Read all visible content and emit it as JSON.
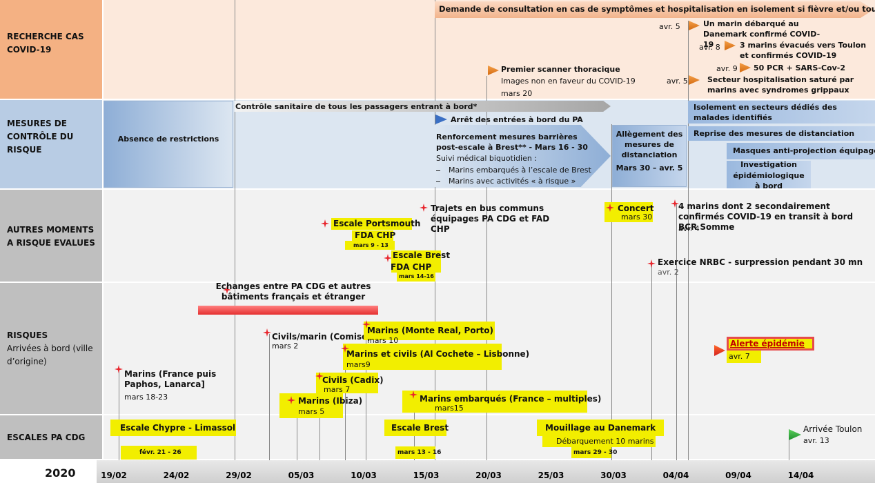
{
  "rows": [
    {
      "title": "RECHERCHE CAS COVID-19"
    },
    {
      "title": "MESURES DE CONTRÔLE DU RISQUE"
    },
    {
      "title": "AUTRES MOMENTS A RISQUE EVALUES"
    },
    {
      "title": "RISQUES",
      "subtitle": "Arrivées à bord (ville d’origine)"
    },
    {
      "title": "ESCALES PA CDG"
    }
  ],
  "case_search": {
    "banner": "Demande de consultation en cas de symptômes et hospitalisation en isolement si fièvre et/ou toux",
    "scanner": {
      "title": "Premier scanner thoracique",
      "note": "Images non en faveur du COVID-19",
      "date": "mars 20"
    },
    "events": [
      {
        "date": "avr. 5",
        "text": "Un marin débarqué au Danemark confirmé COVID-19"
      },
      {
        "date": "avr. 8",
        "text": "3 marins  évacués vers Toulon et confirmés COVID-19"
      },
      {
        "date": "avr. 9",
        "text": "50 PCR + SARS-Cov-2"
      },
      {
        "date": "avr. 5",
        "text": "Secteur hospitalisation  saturé par marins avec syndromes grippaux"
      }
    ]
  },
  "control_measures": {
    "no_restrictions": "Absence de restrictions",
    "health_check": "Contrôle sanitaire de tous les passagers entrant à bord*",
    "entry_stop": "Arrêt des entrées à bord du PA",
    "barriers": "Renforcement mesures barrières post-escale à Brest** - Mars 16 - 30",
    "follow_up": "Suivi médical biquotidien :",
    "follow_up_items": [
      "Marins embarqués à l’escale de Brest",
      "Marins avec activités « à risque »"
    ],
    "relaxation": "Allègement des mesures de distanciation",
    "relaxation_date": "Mars 30 – avr. 5",
    "isolation": "Isolement en secteurs dédiés des malades identifiés",
    "distancing": "Reprise des mesures de distanciation",
    "masks": "Masques anti-projection équipage",
    "investigation": "Investigation épidémiologique à bord"
  },
  "other_moments": {
    "portsmouth": {
      "title": "Escale Portsmouth",
      "sub": "FDA CHP",
      "date": "mars 9 - 13"
    },
    "brest": {
      "title": "Escale Brest",
      "sub": "FDA CHP",
      "date": "mars 14-16"
    },
    "bus": "Trajets en bus communs équipages PA CDG et FAD CHP",
    "concert": {
      "title": "Concert",
      "date": "mars 30"
    },
    "somme": {
      "text": "4 marins dont 2 secondairement confirmés COVID-19 en transit à bord BCR Somme",
      "date": "avr. 4"
    },
    "nrbc": {
      "text": "Exercice NRBC - surpression pendant 30 mn",
      "date": "avr. 2"
    }
  },
  "arrivals": {
    "exchanges": "Echanges entre PA CDG et autres bâtiments français et étranger",
    "items": [
      {
        "text": "Civils/marin (Comiso)",
        "date": "mars 2"
      },
      {
        "text": "Marins (Monte Real, Porto)",
        "date": "mars 10"
      },
      {
        "text": "Marins et civils (Al Cochete – Lisbonne)",
        "date": "mars9"
      },
      {
        "text": "Civils (Cadix)",
        "date": "mars 7"
      },
      {
        "text": "Marins (Ibiza)",
        "date": "mars 5"
      },
      {
        "text": "Marins embarqués (France – multiples)",
        "date": "mars15"
      },
      {
        "text": "Marins (France puis Paphos, Lanarca]",
        "date": "mars 18-23"
      }
    ],
    "alert": {
      "text": "Alerte épidémie",
      "date": "avr. 7"
    }
  },
  "stopovers": [
    {
      "title": "Escale Chypre - Limassol",
      "date": "févr. 21 - 26"
    },
    {
      "title": "Escale Brest",
      "date": "mars 13 - 16"
    },
    {
      "title": "Mouillage au Danemark",
      "note": "Débarquement  10 marins",
      "date": "mars 29 - 30"
    },
    {
      "title": "Arrivée Toulon",
      "date": "avr. 13"
    }
  ],
  "axis": {
    "year": "2020",
    "dates": [
      "19/02",
      "24/02",
      "29/02",
      "05/03",
      "10/03",
      "15/03",
      "20/03",
      "25/03",
      "30/03",
      "04/04",
      "09/04",
      "14/04"
    ]
  }
}
